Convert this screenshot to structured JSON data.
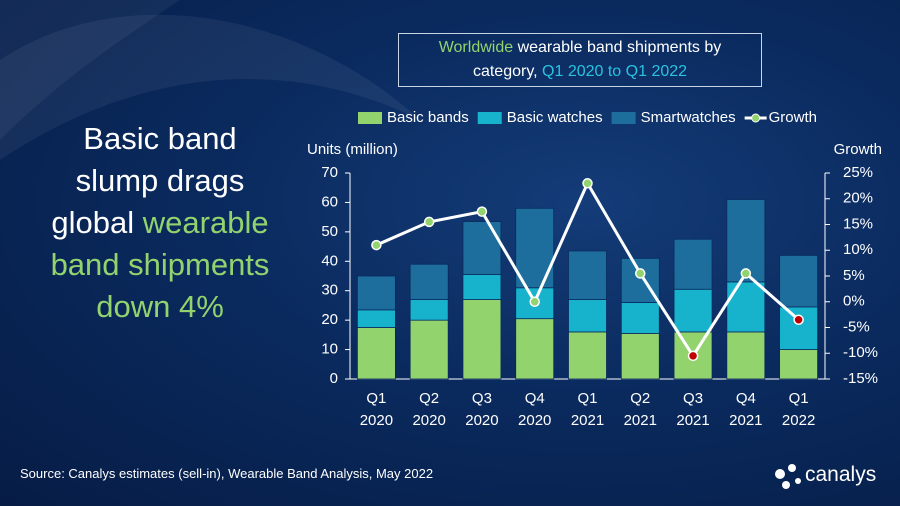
{
  "headline": [
    [
      {
        "text": "Basic band",
        "color": "#ffffff"
      }
    ],
    [
      {
        "text": "slump drags",
        "color": "#ffffff"
      }
    ],
    [
      {
        "text": "global",
        "color": "#ffffff"
      },
      {
        "text": "wearable",
        "color": "#92d36e"
      }
    ],
    [
      {
        "text": "band shipments",
        "color": "#92d36e"
      }
    ],
    [
      {
        "text": "down 4%",
        "color": "#92d36e"
      }
    ]
  ],
  "chart_data": {
    "type": "bar",
    "stacked": true,
    "title": [
      [
        {
          "text": "Worldwide",
          "color": "#92d36e"
        },
        {
          "text": "wearable band shipments by",
          "color": "#ffffff"
        }
      ],
      [
        {
          "text": "category,",
          "color": "#ffffff"
        },
        {
          "text": "Q1 2020 to Q1 2022",
          "color": "#29c3e0"
        }
      ]
    ],
    "y_label": "Units (million)",
    "y2_label": "Growth",
    "categories": [
      "Q1 2020",
      "Q2 2020",
      "Q3 2020",
      "Q4 2020",
      "Q1 2021",
      "Q2 2021",
      "Q3 2021",
      "Q4 2021",
      "Q1 2022"
    ],
    "series": [
      {
        "name": "Basic bands",
        "color": "#92d36e",
        "values": [
          17.5,
          20,
          27,
          20.5,
          16,
          15.5,
          16,
          16,
          10
        ]
      },
      {
        "name": "Basic watches",
        "color": "#17b3cc",
        "values": [
          6,
          7,
          8.5,
          10.5,
          11,
          10.5,
          14.5,
          17,
          14.5
        ]
      },
      {
        "name": "Smartwatches",
        "color": "#1d6e9c",
        "values": [
          11.5,
          12,
          18,
          27,
          16.5,
          15,
          17,
          28,
          17.5
        ]
      },
      {
        "name": "Growth",
        "type": "line",
        "axis": "y2",
        "color": "#ffffff",
        "marker_color": "#92d36e",
        "marker_colors": [
          "#92d36e",
          "#92d36e",
          "#92d36e",
          "#92d36e",
          "#92d36e",
          "#92d36e",
          "#c00000",
          "#92d36e",
          "#c00000"
        ],
        "values": [
          11,
          15.5,
          17.5,
          0,
          23,
          5.5,
          -10.5,
          5.5,
          -3.5
        ]
      }
    ],
    "ylim": [
      0,
      70
    ],
    "yticks": [
      0,
      10,
      20,
      30,
      40,
      50,
      60,
      70
    ],
    "y2lim": [
      -15,
      25
    ],
    "y2ticks": [
      {
        "value": -15,
        "label": "-15%"
      },
      {
        "value": -10,
        "label": "-10%"
      },
      {
        "value": -5,
        "label": "-5%"
      },
      {
        "value": 0,
        "label": "0%"
      },
      {
        "value": 5,
        "label": "5%"
      },
      {
        "value": 10,
        "label": "10%"
      },
      {
        "value": 15,
        "label": "15%"
      },
      {
        "value": 20,
        "label": "20%"
      },
      {
        "value": 25,
        "label": "25%"
      }
    ],
    "legend": "top"
  },
  "source": "Source: Canalys estimates (sell-in), Wearable Band Analysis, May 2022",
  "logo": "canalys"
}
